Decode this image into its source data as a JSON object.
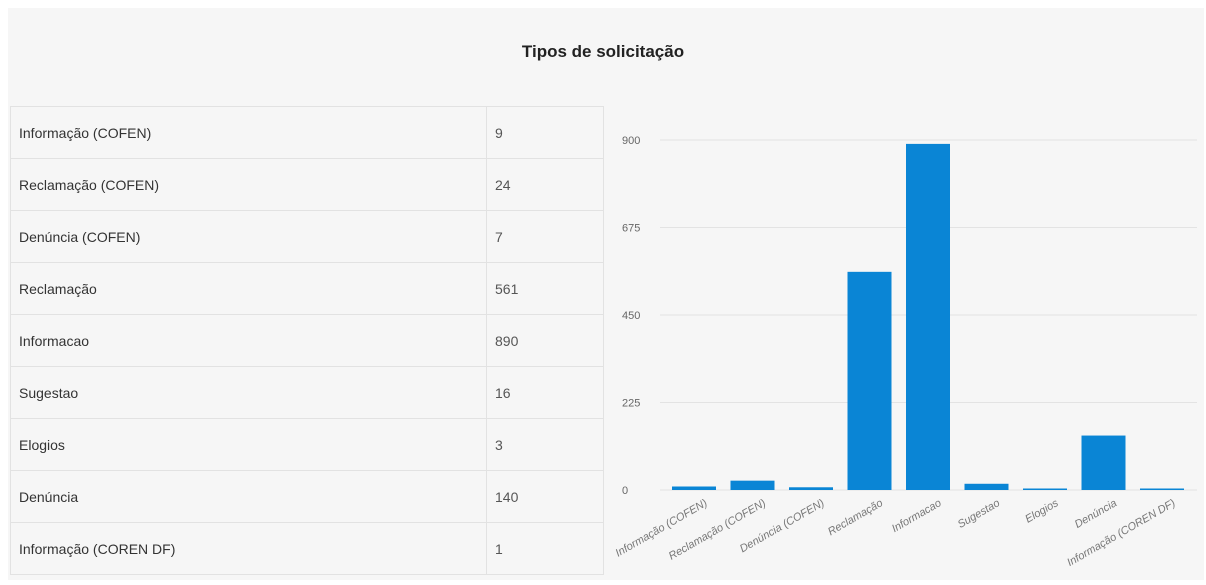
{
  "page": {
    "title": "Tipos de solicitação"
  },
  "table": {
    "rows": [
      {
        "label": "Informação (COFEN)",
        "value": "9"
      },
      {
        "label": "Reclamação (COFEN)",
        "value": "24"
      },
      {
        "label": "Denúncia (COFEN)",
        "value": "7"
      },
      {
        "label": "Reclamação",
        "value": "561"
      },
      {
        "label": "Informacao",
        "value": "890"
      },
      {
        "label": "Sugestao",
        "value": "16"
      },
      {
        "label": "Elogios",
        "value": "3"
      },
      {
        "label": "Denúncia",
        "value": "140"
      },
      {
        "label": "Informação (COREN DF)",
        "value": "1"
      }
    ]
  },
  "chart_data": {
    "type": "bar",
    "categories": [
      "Informação (COFEN)",
      "Reclamação (COFEN)",
      "Denúncia (COFEN)",
      "Reclamação",
      "Informacao",
      "Sugestao",
      "Elogios",
      "Denúncia",
      "Informação (COREN DF)"
    ],
    "values": [
      9,
      24,
      7,
      561,
      890,
      16,
      3,
      140,
      1
    ],
    "yticks": [
      0,
      225,
      450,
      675,
      900
    ],
    "ylim": [
      0,
      900
    ],
    "bar_color": "#0a85d5",
    "grid": true,
    "xlabel": "",
    "ylabel": ""
  }
}
